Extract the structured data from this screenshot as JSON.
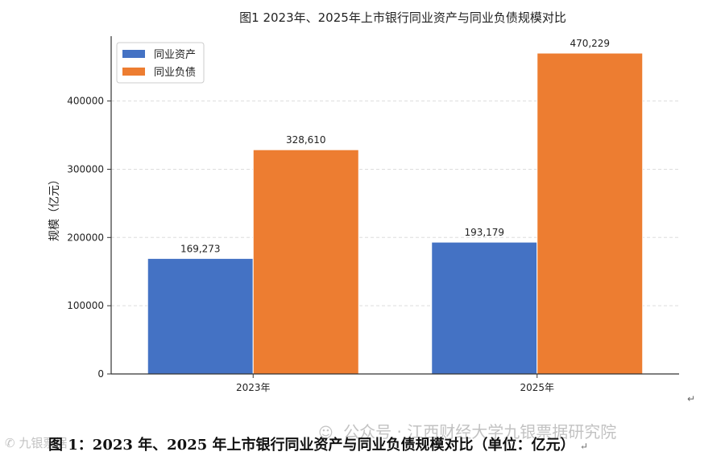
{
  "chart_data": {
    "type": "bar",
    "title": "图1 2023年、2025年上市银行同业资产与同业负债规模对比",
    "xlabel": "",
    "ylabel": "规模（亿元）",
    "categories": [
      "2023年",
      "2025年"
    ],
    "series": [
      {
        "name": "同业资产",
        "values": [
          169273,
          193179
        ],
        "labels": [
          "169,273",
          "193,179"
        ],
        "color": "#4472c4"
      },
      {
        "name": "同业负债",
        "values": [
          328610,
          470229
        ],
        "labels": [
          "328,610",
          "470,229"
        ],
        "color": "#ed7d31"
      }
    ],
    "ylim": [
      0,
      495000
    ],
    "yticks": [
      0,
      100000,
      200000,
      300000,
      400000
    ],
    "ytick_labels": [
      "0",
      "100000",
      "200000",
      "300000",
      "400000"
    ],
    "grid": "horizontal dashed",
    "legend": "top-left"
  },
  "caption": "图 1：2023 年、2025 年上市银行同业资产与同业负债规模对比（单位：亿元）",
  "watermark": "公众号 · 江西财经大学九银票据研究院",
  "watermark_logo": "九银票据",
  "return_mark": "↵"
}
